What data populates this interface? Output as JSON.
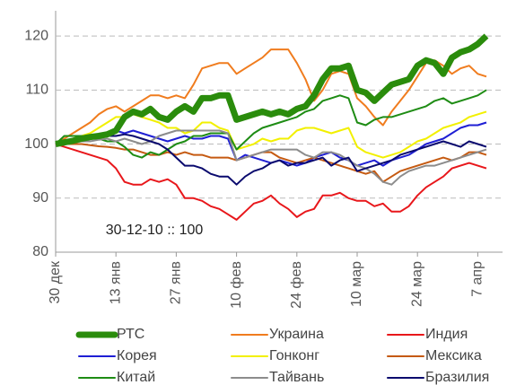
{
  "chart_data": {
    "type": "line",
    "annotation": "30-12-10 :: 100",
    "categories": [
      "30 дек",
      null,
      null,
      null,
      null,
      null,
      null,
      "13 янв",
      null,
      null,
      null,
      null,
      null,
      null,
      "27 янв",
      null,
      null,
      null,
      null,
      null,
      null,
      "10 фев",
      null,
      null,
      null,
      null,
      null,
      null,
      "24 фев",
      null,
      null,
      null,
      null,
      null,
      null,
      "10 мар",
      null,
      null,
      null,
      null,
      null,
      null,
      "24 мар",
      null,
      null,
      null,
      null,
      null,
      null,
      "7 апр",
      null
    ],
    "ylim": [
      80,
      124
    ],
    "yticks": [
      80,
      90,
      100,
      110,
      120
    ],
    "grid": true,
    "series": [
      {
        "name": "РТС",
        "color": "#2a8c0c",
        "values": [
          100,
          100.3,
          100.6,
          101,
          101.3,
          101.5,
          101.8,
          102.5,
          105,
          106,
          105.5,
          106.5,
          105,
          104.5,
          106,
          107,
          106,
          108.5,
          108.5,
          109,
          109,
          104.5,
          105,
          105.5,
          106,
          105.5,
          106,
          105.5,
          106.5,
          107,
          109,
          112,
          114,
          114,
          114.5,
          110,
          109.5,
          108,
          109.5,
          111,
          111.5,
          112,
          114.5,
          115.5,
          115,
          113,
          116,
          117,
          117.5,
          118.5,
          120
        ]
      },
      {
        "name": "Украина",
        "color": "#f07c1e",
        "values": [
          100,
          101,
          102,
          103,
          104,
          105.5,
          106.5,
          107,
          106,
          107,
          108,
          109,
          109,
          108.5,
          109,
          108.5,
          111,
          114,
          114.5,
          115,
          115,
          113,
          114,
          115,
          116,
          117.5,
          117.5,
          117.5,
          115,
          112,
          108,
          110,
          113,
          113.5,
          113,
          108.5,
          107,
          105,
          103.5,
          106,
          108,
          110,
          112.5,
          115,
          115.5,
          114.5,
          113,
          114,
          114.5,
          113,
          112.5
        ]
      },
      {
        "name": "Индия",
        "color": "#e8171b",
        "values": [
          100,
          99.5,
          99,
          98.5,
          98,
          97.5,
          97,
          95.5,
          93,
          92.5,
          92.5,
          93.5,
          93,
          93.5,
          92.5,
          90,
          90,
          89.5,
          88.5,
          88,
          87,
          86,
          87.5,
          89,
          89.5,
          90.5,
          89,
          88,
          86.5,
          87.5,
          88,
          90.5,
          90.5,
          91,
          90,
          89.5,
          89.5,
          88.5,
          89,
          87.5,
          87.5,
          88.5,
          90.5,
          92,
          93,
          94,
          95.5,
          96,
          96.5,
          96,
          95.5
        ]
      },
      {
        "name": "Корея",
        "color": "#1f1fd4",
        "values": [
          100,
          100.3,
          100.5,
          100.8,
          101,
          101.5,
          102,
          102.5,
          102,
          102.5,
          102,
          101.5,
          101,
          100.5,
          101,
          101.5,
          101,
          101,
          101.5,
          101.5,
          101,
          97,
          98,
          97.5,
          97,
          96.5,
          97,
          96.5,
          96,
          96.5,
          97.5,
          98,
          98.5,
          97.5,
          97,
          96,
          96.5,
          97,
          96,
          97,
          97.5,
          98,
          99,
          100,
          100.5,
          101,
          102,
          103,
          103.5,
          103.5,
          104
        ]
      },
      {
        "name": "Гонконг",
        "color": "#f2f000",
        "values": [
          100,
          100.5,
          101,
          101.5,
          102,
          103,
          104,
          105,
          105,
          105.5,
          105,
          104.5,
          104,
          103,
          103,
          102,
          102.5,
          104,
          104,
          103,
          102.5,
          99,
          99.5,
          100,
          101,
          100.5,
          101,
          101,
          102.5,
          103,
          103,
          102.5,
          102,
          102.5,
          103,
          99.5,
          98.5,
          98,
          97.5,
          98,
          98.5,
          99.5,
          100.5,
          101,
          102,
          103,
          103.5,
          104,
          105,
          105.5,
          106
        ]
      },
      {
        "name": "Мексика",
        "color": "#c55a11",
        "values": [
          100,
          100,
          100,
          100,
          99.8,
          99.6,
          99.5,
          99.3,
          99,
          99,
          98.5,
          98,
          98,
          98.5,
          98,
          98.5,
          98,
          98,
          97.5,
          97.5,
          97.5,
          97,
          97.5,
          98,
          98.5,
          98.5,
          97.5,
          97,
          96.5,
          97,
          97.5,
          97,
          96.5,
          96,
          95.5,
          95,
          94.5,
          95,
          93,
          94,
          95,
          95.5,
          96,
          96.5,
          97,
          97.5,
          97,
          97.5,
          98.5,
          98.5,
          98
        ]
      },
      {
        "name": "Китай",
        "color": "#1e8c14",
        "values": [
          100,
          101.5,
          101.5,
          101.5,
          101,
          101,
          100.5,
          100.5,
          99.5,
          98,
          97.5,
          98.5,
          98,
          99,
          100,
          100.5,
          101.5,
          101.5,
          102,
          102,
          102,
          99,
          100.5,
          102,
          103,
          103.5,
          104,
          104.5,
          105,
          106,
          106.5,
          108,
          108.5,
          109,
          108.5,
          104,
          103.5,
          104.5,
          105,
          105,
          105.5,
          106,
          106.5,
          107,
          108,
          108.5,
          107.5,
          108,
          108.5,
          109,
          110
        ]
      },
      {
        "name": "Тайвань",
        "color": "#8c8c8c",
        "values": [
          100,
          100,
          100.2,
          100.5,
          100.5,
          100.8,
          101,
          100.5,
          101,
          100.5,
          100,
          100.5,
          101.5,
          102,
          102.5,
          102.5,
          102.5,
          102.5,
          102.5,
          102.5,
          102,
          97,
          97.5,
          98,
          98.5,
          99,
          99,
          99,
          99,
          98,
          97.5,
          98.5,
          98.5,
          98,
          97,
          96,
          95.5,
          94.5,
          93,
          92.5,
          94,
          95,
          95.5,
          96,
          96,
          96.5,
          97,
          97.5,
          98,
          98.5,
          99
        ]
      },
      {
        "name": "Бразилия",
        "color": "#0a0a6e",
        "values": [
          100,
          100.2,
          100.5,
          100.8,
          101,
          101.3,
          101.5,
          101.5,
          101.8,
          101.5,
          101,
          100.5,
          100,
          99,
          97.5,
          96,
          96,
          95.5,
          94.5,
          94,
          94,
          92.5,
          94,
          95,
          95.5,
          96.5,
          97,
          96,
          96.5,
          96.5,
          97,
          97.5,
          96,
          97,
          97.5,
          95,
          95.5,
          96,
          96.5,
          97,
          98,
          98.5,
          99,
          99.5,
          100,
          100.5,
          100,
          99.5,
          100.5,
          100,
          99.5
        ]
      }
    ]
  }
}
